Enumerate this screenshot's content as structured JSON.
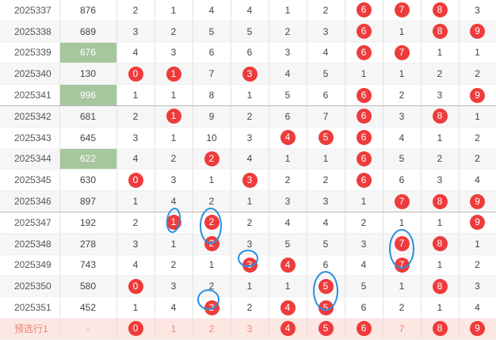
{
  "rows": [
    {
      "period": "2025337",
      "sum": "876",
      "hl": false,
      "cells": [
        {
          "v": "2",
          "b": false
        },
        {
          "v": "1",
          "b": false
        },
        {
          "v": "4",
          "b": false
        },
        {
          "v": "4",
          "b": false
        },
        {
          "v": "1",
          "b": false
        },
        {
          "v": "2",
          "b": false
        },
        {
          "v": "6",
          "b": true
        },
        {
          "v": "7",
          "b": true
        },
        {
          "v": "8",
          "b": true
        },
        {
          "v": "3",
          "b": false
        }
      ]
    },
    {
      "period": "2025338",
      "sum": "689",
      "hl": false,
      "cells": [
        {
          "v": "3",
          "b": false
        },
        {
          "v": "2",
          "b": false
        },
        {
          "v": "5",
          "b": false
        },
        {
          "v": "5",
          "b": false
        },
        {
          "v": "2",
          "b": false
        },
        {
          "v": "3",
          "b": false
        },
        {
          "v": "6",
          "b": true
        },
        {
          "v": "1",
          "b": false
        },
        {
          "v": "8",
          "b": true
        },
        {
          "v": "9",
          "b": true
        }
      ]
    },
    {
      "period": "2025339",
      "sum": "676",
      "hl": true,
      "cells": [
        {
          "v": "4",
          "b": false
        },
        {
          "v": "3",
          "b": false
        },
        {
          "v": "6",
          "b": false
        },
        {
          "v": "6",
          "b": false
        },
        {
          "v": "3",
          "b": false
        },
        {
          "v": "4",
          "b": false
        },
        {
          "v": "6",
          "b": true
        },
        {
          "v": "7",
          "b": true
        },
        {
          "v": "1",
          "b": false
        },
        {
          "v": "1",
          "b": false
        }
      ]
    },
    {
      "period": "2025340",
      "sum": "130",
      "hl": false,
      "cells": [
        {
          "v": "0",
          "b": true
        },
        {
          "v": "1",
          "b": true
        },
        {
          "v": "7",
          "b": false
        },
        {
          "v": "3",
          "b": true
        },
        {
          "v": "4",
          "b": false
        },
        {
          "v": "5",
          "b": false
        },
        {
          "v": "1",
          "b": false
        },
        {
          "v": "1",
          "b": false
        },
        {
          "v": "2",
          "b": false
        },
        {
          "v": "2",
          "b": false
        }
      ]
    },
    {
      "period": "2025341",
      "sum": "996",
      "hl": true,
      "group_end": true,
      "cells": [
        {
          "v": "1",
          "b": false
        },
        {
          "v": "1",
          "b": false
        },
        {
          "v": "8",
          "b": false
        },
        {
          "v": "1",
          "b": false
        },
        {
          "v": "5",
          "b": false
        },
        {
          "v": "6",
          "b": false
        },
        {
          "v": "6",
          "b": true
        },
        {
          "v": "2",
          "b": false
        },
        {
          "v": "3",
          "b": false
        },
        {
          "v": "9",
          "b": true
        }
      ]
    },
    {
      "period": "2025342",
      "sum": "681",
      "hl": false,
      "cells": [
        {
          "v": "2",
          "b": false
        },
        {
          "v": "1",
          "b": true
        },
        {
          "v": "9",
          "b": false
        },
        {
          "v": "2",
          "b": false
        },
        {
          "v": "6",
          "b": false
        },
        {
          "v": "7",
          "b": false
        },
        {
          "v": "6",
          "b": true
        },
        {
          "v": "3",
          "b": false
        },
        {
          "v": "8",
          "b": true
        },
        {
          "v": "1",
          "b": false
        }
      ]
    },
    {
      "period": "2025343",
      "sum": "645",
      "hl": false,
      "cells": [
        {
          "v": "3",
          "b": false
        },
        {
          "v": "1",
          "b": false
        },
        {
          "v": "10",
          "b": false
        },
        {
          "v": "3",
          "b": false
        },
        {
          "v": "4",
          "b": true
        },
        {
          "v": "5",
          "b": true
        },
        {
          "v": "6",
          "b": true
        },
        {
          "v": "4",
          "b": false
        },
        {
          "v": "1",
          "b": false
        },
        {
          "v": "2",
          "b": false
        }
      ]
    },
    {
      "period": "2025344",
      "sum": "622",
      "hl": true,
      "cells": [
        {
          "v": "4",
          "b": false
        },
        {
          "v": "2",
          "b": false
        },
        {
          "v": "2",
          "b": true
        },
        {
          "v": "4",
          "b": false
        },
        {
          "v": "1",
          "b": false
        },
        {
          "v": "1",
          "b": false
        },
        {
          "v": "6",
          "b": true
        },
        {
          "v": "5",
          "b": false
        },
        {
          "v": "2",
          "b": false
        },
        {
          "v": "2",
          "b": false
        }
      ]
    },
    {
      "period": "2025345",
      "sum": "630",
      "hl": false,
      "cells": [
        {
          "v": "0",
          "b": true
        },
        {
          "v": "3",
          "b": false
        },
        {
          "v": "1",
          "b": false
        },
        {
          "v": "3",
          "b": true
        },
        {
          "v": "2",
          "b": false
        },
        {
          "v": "2",
          "b": false
        },
        {
          "v": "6",
          "b": true
        },
        {
          "v": "6",
          "b": false
        },
        {
          "v": "3",
          "b": false
        },
        {
          "v": "4",
          "b": false
        }
      ]
    },
    {
      "period": "2025346",
      "sum": "897",
      "hl": false,
      "group_end": true,
      "cells": [
        {
          "v": "1",
          "b": false
        },
        {
          "v": "4",
          "b": false
        },
        {
          "v": "2",
          "b": false
        },
        {
          "v": "1",
          "b": false
        },
        {
          "v": "3",
          "b": false
        },
        {
          "v": "3",
          "b": false
        },
        {
          "v": "1",
          "b": false
        },
        {
          "v": "7",
          "b": true
        },
        {
          "v": "8",
          "b": true
        },
        {
          "v": "9",
          "b": true
        }
      ]
    },
    {
      "period": "2025347",
      "sum": "192",
      "hl": false,
      "cells": [
        {
          "v": "2",
          "b": false
        },
        {
          "v": "1",
          "b": true
        },
        {
          "v": "2",
          "b": true
        },
        {
          "v": "2",
          "b": false
        },
        {
          "v": "4",
          "b": false
        },
        {
          "v": "4",
          "b": false
        },
        {
          "v": "2",
          "b": false
        },
        {
          "v": "1",
          "b": false
        },
        {
          "v": "1",
          "b": false
        },
        {
          "v": "9",
          "b": true
        }
      ]
    },
    {
      "period": "2025348",
      "sum": "278",
      "hl": false,
      "cells": [
        {
          "v": "3",
          "b": false
        },
        {
          "v": "1",
          "b": false
        },
        {
          "v": "2",
          "b": true
        },
        {
          "v": "3",
          "b": false
        },
        {
          "v": "5",
          "b": false
        },
        {
          "v": "5",
          "b": false
        },
        {
          "v": "3",
          "b": false
        },
        {
          "v": "7",
          "b": true
        },
        {
          "v": "8",
          "b": true
        },
        {
          "v": "1",
          "b": false
        }
      ]
    },
    {
      "period": "2025349",
      "sum": "743",
      "hl": false,
      "cells": [
        {
          "v": "4",
          "b": false
        },
        {
          "v": "2",
          "b": false
        },
        {
          "v": "1",
          "b": false
        },
        {
          "v": "3",
          "b": true
        },
        {
          "v": "4",
          "b": true
        },
        {
          "v": "6",
          "b": false
        },
        {
          "v": "4",
          "b": false
        },
        {
          "v": "7",
          "b": true
        },
        {
          "v": "1",
          "b": false
        },
        {
          "v": "2",
          "b": false
        }
      ]
    },
    {
      "period": "2025350",
      "sum": "580",
      "hl": false,
      "cells": [
        {
          "v": "0",
          "b": true
        },
        {
          "v": "3",
          "b": false
        },
        {
          "v": "2",
          "b": false
        },
        {
          "v": "1",
          "b": false
        },
        {
          "v": "1",
          "b": false
        },
        {
          "v": "5",
          "b": true
        },
        {
          "v": "5",
          "b": false
        },
        {
          "v": "1",
          "b": false
        },
        {
          "v": "8",
          "b": true
        },
        {
          "v": "3",
          "b": false
        }
      ]
    },
    {
      "period": "2025351",
      "sum": "452",
      "hl": false,
      "cells": [
        {
          "v": "1",
          "b": false
        },
        {
          "v": "4",
          "b": false
        },
        {
          "v": "2",
          "b": true
        },
        {
          "v": "2",
          "b": false
        },
        {
          "v": "4",
          "b": true
        },
        {
          "v": "5",
          "b": true
        },
        {
          "v": "6",
          "b": false
        },
        {
          "v": "2",
          "b": false
        },
        {
          "v": "1",
          "b": false
        },
        {
          "v": "4",
          "b": false
        }
      ]
    }
  ],
  "predict_row": {
    "period": "预选行1",
    "sum": "-",
    "cells": [
      {
        "v": "0",
        "b": true
      },
      {
        "v": "1",
        "b": false
      },
      {
        "v": "2",
        "b": false
      },
      {
        "v": "3",
        "b": false
      },
      {
        "v": "4",
        "b": true
      },
      {
        "v": "5",
        "b": true
      },
      {
        "v": "6",
        "b": true
      },
      {
        "v": "7",
        "b": false
      },
      {
        "v": "8",
        "b": true
      },
      {
        "v": "9",
        "b": true
      }
    ]
  },
  "colors": {
    "ball": "#ee3b3b",
    "sum_highlight": "#a6c69d",
    "predict_bg": "#fce7e3",
    "annotation_ring": "#2a8fe0"
  }
}
